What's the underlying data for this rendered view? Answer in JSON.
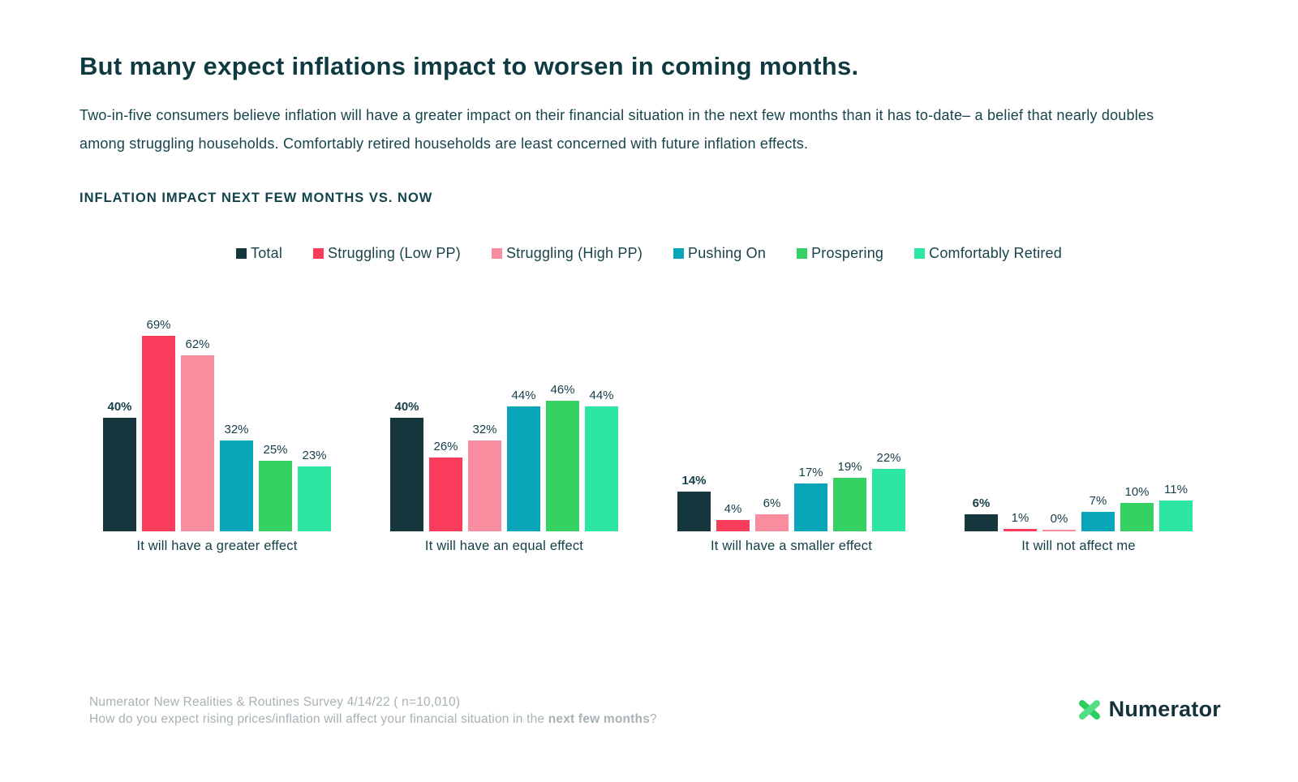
{
  "page": {
    "title": "But many expect inflations impact to worsen in coming months.",
    "subtitle": "Two-in-five consumers believe inflation will have a greater impact on their financial situation in the next few months than it has to-date– a belief that nearly doubles among struggling households. Comfortably retired households are least concerned with future inflation effects.",
    "section_label": "INFLATION IMPACT NEXT FEW MONTHS VS. NOW"
  },
  "chart_data": {
    "type": "bar",
    "title": "INFLATION IMPACT NEXT FEW MONTHS VS. NOW",
    "categories": [
      "It will have a greater effect",
      "It will have an equal effect",
      "It will have a smaller effect",
      "It will not affect me"
    ],
    "series": [
      {
        "name": "Total",
        "color": "#17373e",
        "emphasis": true,
        "values": [
          40,
          40,
          14,
          6
        ]
      },
      {
        "name": "Struggling (Low PP)",
        "color": "#fa3c5c",
        "emphasis": false,
        "values": [
          69,
          26,
          4,
          1
        ]
      },
      {
        "name": "Struggling (High PP)",
        "color": "#f98da0",
        "emphasis": false,
        "values": [
          62,
          32,
          6,
          0
        ]
      },
      {
        "name": "Pushing On",
        "color": "#09a5b8",
        "emphasis": false,
        "values": [
          32,
          44,
          17,
          7
        ]
      },
      {
        "name": "Prospering",
        "color": "#35d263",
        "emphasis": false,
        "values": [
          25,
          46,
          19,
          10
        ]
      },
      {
        "name": "Comfortably Retired",
        "color": "#2ce6a2",
        "emphasis": false,
        "values": [
          23,
          44,
          22,
          11
        ]
      }
    ],
    "value_suffix": "%",
    "ylim": [
      0,
      100
    ],
    "grid": false,
    "legend_position": "top"
  },
  "footer": {
    "line1": "Numerator New Realities & Routines Survey 4/14/22 ( n=10,010)",
    "line2_prefix": "How do you expect rising prices/inflation will affect your financial situation in the ",
    "line2_bold": "next few months",
    "line2_suffix": "?",
    "logo_text": "Numerator",
    "logo_color": "#2bcf5e"
  }
}
